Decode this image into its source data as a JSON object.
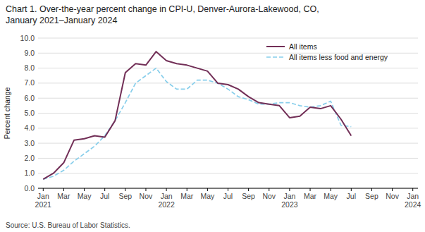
{
  "chart_data": {
    "type": "line",
    "title": "Chart 1. Over-the-year percent change in CPI-U, Denver-Aurora-Lakewood, CO,\nJanuary 2021–January 2024",
    "y_label": "Percent change",
    "source": "Source: U.S. Bureau of Labor Statistics.",
    "categories": [
      "Jan\n2021",
      null,
      "Mar",
      null,
      "May",
      null,
      "Jul",
      null,
      "Sep",
      null,
      "Nov",
      null,
      "Jan\n2022",
      null,
      "Mar",
      null,
      "May",
      null,
      "Jul",
      null,
      "Sep",
      null,
      "Nov",
      null,
      "Jan\n2023",
      null,
      "Mar",
      null,
      "May",
      null,
      "Jul",
      null,
      "Sep",
      null,
      "Nov",
      null,
      "Jan\n2024"
    ],
    "series": [
      {
        "name": "All items",
        "color": "#722F57",
        "line_style": "solid",
        "values": [
          0.6,
          1.0,
          1.7,
          3.2,
          3.3,
          3.5,
          3.4,
          4.5,
          7.7,
          8.3,
          8.2,
          9.1,
          8.5,
          8.3,
          8.2,
          8.0,
          7.8,
          7.0,
          6.9,
          6.6,
          6.1,
          5.7,
          5.6,
          5.5,
          4.7,
          4.8,
          5.4,
          5.3,
          5.5,
          4.6,
          3.5,
          null,
          null,
          null,
          null,
          null,
          null
        ]
      },
      {
        "name": "All items less food and energy",
        "color": "#87CEEB",
        "line_style": "dashed",
        "values": [
          0.6,
          0.8,
          1.2,
          1.8,
          2.3,
          2.8,
          3.5,
          4.5,
          5.7,
          7.0,
          7.5,
          8.0,
          7.1,
          6.6,
          6.6,
          7.2,
          7.2,
          7.0,
          6.6,
          6.1,
          5.9,
          5.6,
          5.6,
          5.7,
          5.7,
          5.5,
          5.4,
          5.5,
          5.8,
          4.2,
          4.1,
          null,
          null,
          null,
          null,
          null,
          null
        ]
      }
    ],
    "ylim": [
      0.0,
      10.0
    ],
    "yticks": [
      {
        "value": 0.0,
        "label": "0.0"
      },
      {
        "value": 1.0,
        "label": "1.0"
      },
      {
        "value": 2.0,
        "label": "2.0"
      },
      {
        "value": 3.0,
        "label": "3.0"
      },
      {
        "value": 4.0,
        "label": "4.0"
      },
      {
        "value": 5.0,
        "label": "5.0"
      },
      {
        "value": 6.0,
        "label": "6.0"
      },
      {
        "value": 7.0,
        "label": "7.0"
      },
      {
        "value": 8.0,
        "label": "8.0"
      },
      {
        "value": 9.0,
        "label": "9.0"
      },
      {
        "value": 10.0,
        "label": "10.0"
      }
    ],
    "grid": true,
    "legend": "upper right"
  }
}
